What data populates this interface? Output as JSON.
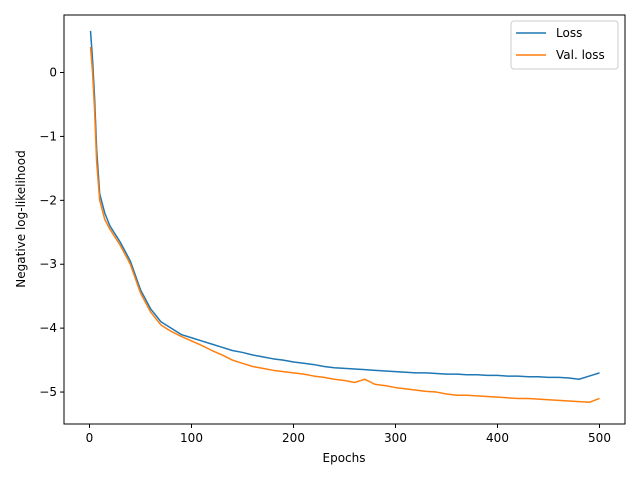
{
  "chart_data": {
    "type": "line",
    "title": "",
    "xlabel": "Epochs",
    "ylabel": "Negative log-likelihood",
    "xlim": [
      -25,
      525
    ],
    "ylim": [
      -5.5,
      0.9
    ],
    "xticks": [
      0,
      100,
      200,
      300,
      400,
      500
    ],
    "yticks": [
      0,
      -1,
      -2,
      -3,
      -4,
      -5
    ],
    "xtick_labels": [
      "0",
      "100",
      "200",
      "300",
      "400",
      "500"
    ],
    "ytick_labels": [
      "0",
      "−1",
      "−2",
      "−3",
      "−4",
      "−5"
    ],
    "grid": false,
    "legend_position": "top-right",
    "series": [
      {
        "name": "Loss",
        "color": "#1f77b4",
        "x": [
          1,
          3,
          5,
          7,
          10,
          15,
          20,
          30,
          40,
          50,
          60,
          70,
          80,
          90,
          100,
          110,
          120,
          130,
          140,
          150,
          160,
          170,
          180,
          190,
          200,
          210,
          220,
          230,
          240,
          250,
          260,
          270,
          280,
          290,
          300,
          310,
          320,
          330,
          340,
          350,
          360,
          370,
          380,
          390,
          400,
          410,
          420,
          430,
          440,
          450,
          460,
          470,
          480,
          490,
          500
        ],
        "y": [
          0.65,
          0.2,
          -0.4,
          -1.2,
          -1.9,
          -2.2,
          -2.4,
          -2.65,
          -2.95,
          -3.4,
          -3.7,
          -3.9,
          -4.0,
          -4.1,
          -4.15,
          -4.2,
          -4.25,
          -4.3,
          -4.35,
          -4.38,
          -4.42,
          -4.45,
          -4.48,
          -4.5,
          -4.53,
          -4.55,
          -4.57,
          -4.6,
          -4.62,
          -4.63,
          -4.64,
          -4.65,
          -4.66,
          -4.67,
          -4.68,
          -4.69,
          -4.7,
          -4.7,
          -4.71,
          -4.72,
          -4.72,
          -4.73,
          -4.73,
          -4.74,
          -4.74,
          -4.75,
          -4.75,
          -4.76,
          -4.76,
          -4.77,
          -4.77,
          -4.78,
          -4.8,
          -4.75,
          -4.7
        ]
      },
      {
        "name": "Val. loss",
        "color": "#ff7f0e",
        "x": [
          1,
          3,
          5,
          7,
          10,
          15,
          20,
          30,
          40,
          50,
          60,
          70,
          80,
          90,
          100,
          110,
          120,
          130,
          140,
          150,
          160,
          170,
          180,
          190,
          200,
          210,
          220,
          230,
          240,
          250,
          260,
          270,
          280,
          290,
          300,
          310,
          320,
          330,
          340,
          350,
          360,
          370,
          380,
          390,
          400,
          410,
          420,
          430,
          440,
          450,
          460,
          470,
          480,
          490,
          500
        ],
        "y": [
          0.4,
          0.0,
          -0.6,
          -1.4,
          -2.0,
          -2.3,
          -2.45,
          -2.7,
          -3.0,
          -3.45,
          -3.75,
          -3.95,
          -4.05,
          -4.13,
          -4.2,
          -4.27,
          -4.35,
          -4.42,
          -4.5,
          -4.55,
          -4.6,
          -4.63,
          -4.66,
          -4.68,
          -4.7,
          -4.72,
          -4.75,
          -4.77,
          -4.8,
          -4.82,
          -4.85,
          -4.8,
          -4.88,
          -4.9,
          -4.93,
          -4.95,
          -4.97,
          -4.99,
          -5.0,
          -5.03,
          -5.05,
          -5.05,
          -5.06,
          -5.07,
          -5.08,
          -5.09,
          -5.1,
          -5.1,
          -5.11,
          -5.12,
          -5.13,
          -5.14,
          -5.15,
          -5.16,
          -5.1
        ]
      }
    ]
  }
}
